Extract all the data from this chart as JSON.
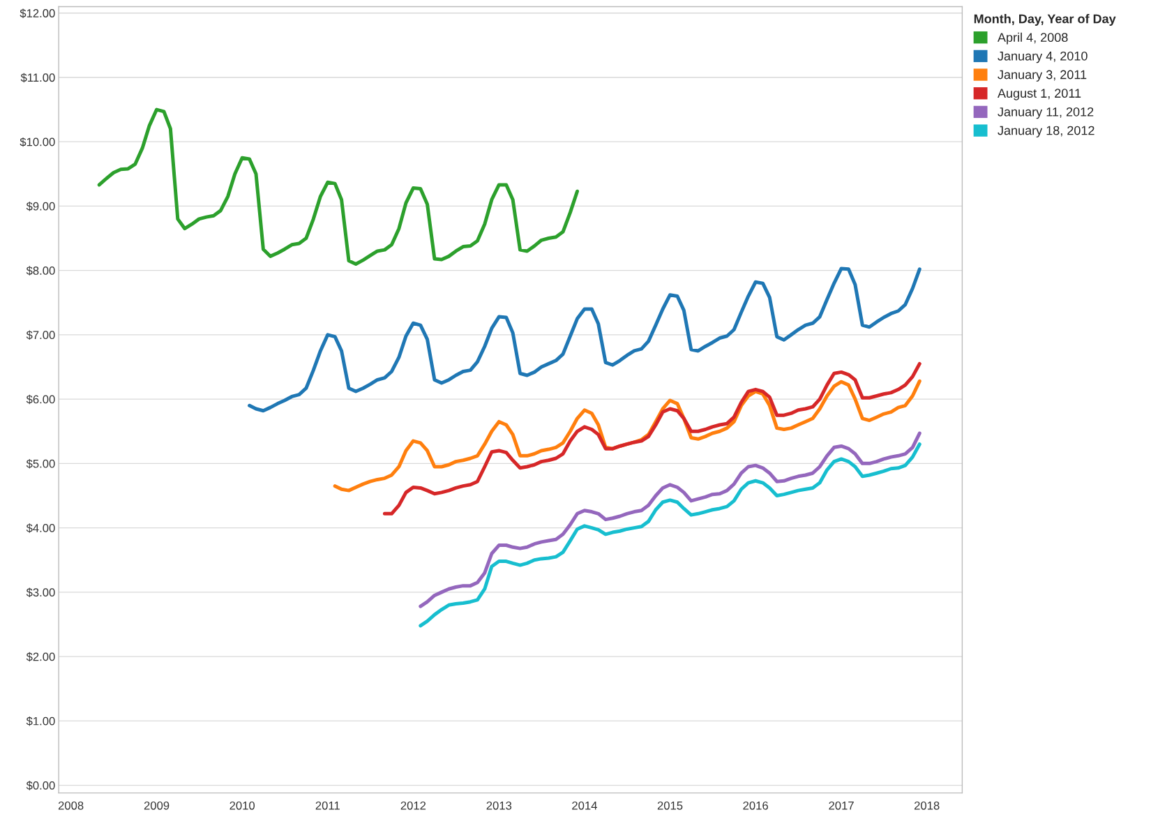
{
  "chart_data": {
    "type": "line",
    "x": [
      "2008-05",
      "2008-06",
      "2008-07",
      "2008-08",
      "2008-09",
      "2008-10",
      "2008-11",
      "2008-12",
      "2009-01",
      "2009-02",
      "2009-03",
      "2009-04",
      "2009-05",
      "2009-06",
      "2009-07",
      "2009-08",
      "2009-09",
      "2009-10",
      "2009-11",
      "2009-12",
      "2010-01",
      "2010-02",
      "2010-03",
      "2010-04",
      "2010-05",
      "2010-06",
      "2010-07",
      "2010-08",
      "2010-09",
      "2010-10",
      "2010-11",
      "2010-12",
      "2011-01",
      "2011-02",
      "2011-03",
      "2011-04",
      "2011-05",
      "2011-06",
      "2011-07",
      "2011-08",
      "2011-09",
      "2011-10",
      "2011-11",
      "2011-12",
      "2012-01",
      "2012-02",
      "2012-03",
      "2012-04",
      "2012-05",
      "2012-06",
      "2012-07",
      "2012-08",
      "2012-09",
      "2012-10",
      "2012-11",
      "2012-12",
      "2013-01",
      "2013-02",
      "2013-03",
      "2013-04",
      "2013-05",
      "2013-06",
      "2013-07",
      "2013-08",
      "2013-09",
      "2013-10",
      "2013-11",
      "2013-12",
      "2014-01",
      "2014-02",
      "2014-03",
      "2014-04",
      "2014-05",
      "2014-06",
      "2014-07",
      "2014-08",
      "2014-09",
      "2014-10",
      "2014-11",
      "2014-12",
      "2015-01",
      "2015-02",
      "2015-03",
      "2015-04",
      "2015-05",
      "2015-06",
      "2015-07",
      "2015-08",
      "2015-09",
      "2015-10",
      "2015-11",
      "2015-12",
      "2016-01",
      "2016-02",
      "2016-03",
      "2016-04",
      "2016-05",
      "2016-06",
      "2016-07",
      "2016-08",
      "2016-09",
      "2016-10",
      "2016-11",
      "2016-12",
      "2017-01",
      "2017-02",
      "2017-03",
      "2017-04",
      "2017-05",
      "2017-06",
      "2017-07",
      "2017-08",
      "2017-09",
      "2017-10",
      "2017-11",
      "2017-12"
    ],
    "series": [
      {
        "name": "April 4, 2008",
        "color": "#2ca02c",
        "values": [
          9.33,
          9.43,
          9.52,
          9.57,
          9.58,
          9.65,
          9.9,
          10.25,
          10.5,
          10.47,
          10.2,
          8.8,
          8.65,
          8.72,
          8.8,
          8.83,
          8.85,
          8.93,
          9.15,
          9.5,
          9.75,
          9.73,
          9.5,
          8.33,
          8.22,
          8.27,
          8.33,
          8.4,
          8.42,
          8.5,
          8.8,
          9.15,
          9.37,
          9.35,
          9.1,
          8.15,
          8.1,
          8.16,
          8.23,
          8.3,
          8.32,
          8.4,
          8.65,
          9.05,
          9.28,
          9.27,
          9.03,
          8.18,
          8.17,
          8.22,
          8.3,
          8.37,
          8.38,
          8.46,
          8.72,
          9.1,
          9.33,
          9.33,
          9.1,
          8.32,
          8.3,
          8.38,
          8.47,
          8.5,
          8.52,
          8.6,
          8.9,
          9.23,
          null,
          null,
          null,
          null,
          null,
          null,
          null,
          null,
          null,
          null,
          null,
          null,
          null,
          null,
          null,
          null,
          null,
          null,
          null,
          null,
          null,
          null,
          null,
          null,
          null,
          null,
          null,
          null,
          null,
          null,
          null,
          null,
          null,
          null,
          null,
          null,
          null,
          null,
          null,
          null,
          null,
          null,
          null,
          null,
          null,
          null,
          null,
          null
        ]
      },
      {
        "name": "January 4, 2010",
        "color": "#1f77b4",
        "values": [
          null,
          null,
          null,
          null,
          null,
          null,
          null,
          null,
          null,
          null,
          null,
          null,
          null,
          null,
          null,
          null,
          null,
          null,
          null,
          null,
          null,
          5.9,
          5.85,
          5.82,
          5.87,
          5.93,
          5.98,
          6.04,
          6.07,
          6.17,
          6.45,
          6.75,
          7.0,
          6.97,
          6.75,
          6.17,
          6.12,
          6.17,
          6.23,
          6.3,
          6.33,
          6.43,
          6.65,
          6.98,
          7.18,
          7.15,
          6.93,
          6.3,
          6.25,
          6.3,
          6.37,
          6.43,
          6.45,
          6.58,
          6.82,
          7.1,
          7.28,
          7.27,
          7.03,
          6.4,
          6.37,
          6.42,
          6.5,
          6.55,
          6.6,
          6.7,
          6.98,
          7.25,
          7.4,
          7.4,
          7.17,
          6.57,
          6.53,
          6.6,
          6.68,
          6.75,
          6.78,
          6.9,
          7.15,
          7.4,
          7.62,
          7.6,
          7.38,
          6.77,
          6.75,
          6.82,
          6.88,
          6.95,
          6.98,
          7.08,
          7.35,
          7.6,
          7.82,
          7.8,
          7.58,
          6.97,
          6.92,
          7.0,
          7.08,
          7.15,
          7.18,
          7.28,
          7.55,
          7.8,
          8.03,
          8.02,
          7.78,
          7.15,
          7.12,
          7.2,
          7.27,
          7.33,
          7.37,
          7.47,
          7.72,
          8.02
        ]
      },
      {
        "name": "January 3, 2011",
        "color": "#ff7f0e",
        "values": [
          null,
          null,
          null,
          null,
          null,
          null,
          null,
          null,
          null,
          null,
          null,
          null,
          null,
          null,
          null,
          null,
          null,
          null,
          null,
          null,
          null,
          null,
          null,
          null,
          null,
          null,
          null,
          null,
          null,
          null,
          null,
          null,
          null,
          4.65,
          4.6,
          4.58,
          4.63,
          4.68,
          4.72,
          4.75,
          4.77,
          4.82,
          4.95,
          5.2,
          5.35,
          5.32,
          5.2,
          4.95,
          4.95,
          4.98,
          5.03,
          5.05,
          5.08,
          5.12,
          5.3,
          5.5,
          5.65,
          5.6,
          5.45,
          5.12,
          5.12,
          5.15,
          5.2,
          5.22,
          5.25,
          5.32,
          5.5,
          5.7,
          5.83,
          5.78,
          5.6,
          5.25,
          5.23,
          5.27,
          5.3,
          5.33,
          5.37,
          5.45,
          5.65,
          5.85,
          5.98,
          5.93,
          5.7,
          5.4,
          5.38,
          5.42,
          5.47,
          5.5,
          5.55,
          5.65,
          5.9,
          6.05,
          6.12,
          6.08,
          5.9,
          5.55,
          5.53,
          5.55,
          5.6,
          5.65,
          5.7,
          5.85,
          6.05,
          6.2,
          6.27,
          6.22,
          6.0,
          5.7,
          5.67,
          5.72,
          5.77,
          5.8,
          5.87,
          5.9,
          6.05,
          6.28
        ]
      },
      {
        "name": "August 1, 2011",
        "color": "#d62728",
        "values": [
          null,
          null,
          null,
          null,
          null,
          null,
          null,
          null,
          null,
          null,
          null,
          null,
          null,
          null,
          null,
          null,
          null,
          null,
          null,
          null,
          null,
          null,
          null,
          null,
          null,
          null,
          null,
          null,
          null,
          null,
          null,
          null,
          null,
          null,
          null,
          null,
          null,
          null,
          null,
          null,
          4.22,
          4.22,
          4.35,
          4.55,
          4.63,
          4.62,
          4.58,
          4.53,
          4.55,
          4.58,
          4.62,
          4.65,
          4.67,
          4.72,
          4.95,
          5.18,
          5.2,
          5.17,
          5.05,
          4.93,
          4.95,
          4.98,
          5.03,
          5.05,
          5.08,
          5.15,
          5.35,
          5.5,
          5.57,
          5.53,
          5.45,
          5.23,
          5.23,
          5.27,
          5.3,
          5.33,
          5.35,
          5.42,
          5.6,
          5.8,
          5.85,
          5.82,
          5.7,
          5.5,
          5.5,
          5.53,
          5.57,
          5.6,
          5.62,
          5.72,
          5.95,
          6.12,
          6.15,
          6.12,
          6.03,
          5.75,
          5.75,
          5.78,
          5.83,
          5.85,
          5.88,
          6.0,
          6.22,
          6.4,
          6.42,
          6.38,
          6.3,
          6.02,
          6.02,
          6.05,
          6.08,
          6.1,
          6.15,
          6.22,
          6.35,
          6.55
        ]
      },
      {
        "name": "January 11, 2012",
        "color": "#9467bd",
        "values": [
          null,
          null,
          null,
          null,
          null,
          null,
          null,
          null,
          null,
          null,
          null,
          null,
          null,
          null,
          null,
          null,
          null,
          null,
          null,
          null,
          null,
          null,
          null,
          null,
          null,
          null,
          null,
          null,
          null,
          null,
          null,
          null,
          null,
          null,
          null,
          null,
          null,
          null,
          null,
          null,
          null,
          null,
          null,
          null,
          null,
          2.78,
          2.85,
          2.95,
          3.0,
          3.05,
          3.08,
          3.1,
          3.1,
          3.15,
          3.3,
          3.6,
          3.73,
          3.73,
          3.7,
          3.68,
          3.7,
          3.75,
          3.78,
          3.8,
          3.82,
          3.9,
          4.05,
          4.22,
          4.27,
          4.25,
          4.22,
          4.13,
          4.15,
          4.18,
          4.22,
          4.25,
          4.27,
          4.35,
          4.5,
          4.62,
          4.67,
          4.63,
          4.55,
          4.42,
          4.45,
          4.48,
          4.52,
          4.53,
          4.58,
          4.68,
          4.85,
          4.95,
          4.97,
          4.93,
          4.85,
          4.72,
          4.73,
          4.77,
          4.8,
          4.82,
          4.85,
          4.95,
          5.12,
          5.25,
          5.27,
          5.23,
          5.15,
          5.0,
          5.0,
          5.03,
          5.07,
          5.1,
          5.12,
          5.15,
          5.25,
          5.47
        ]
      },
      {
        "name": "January 18, 2012",
        "color": "#17becf",
        "values": [
          null,
          null,
          null,
          null,
          null,
          null,
          null,
          null,
          null,
          null,
          null,
          null,
          null,
          null,
          null,
          null,
          null,
          null,
          null,
          null,
          null,
          null,
          null,
          null,
          null,
          null,
          null,
          null,
          null,
          null,
          null,
          null,
          null,
          null,
          null,
          null,
          null,
          null,
          null,
          null,
          null,
          null,
          null,
          null,
          null,
          2.48,
          2.55,
          2.65,
          2.73,
          2.8,
          2.82,
          2.83,
          2.85,
          2.88,
          3.05,
          3.4,
          3.48,
          3.48,
          3.45,
          3.42,
          3.45,
          3.5,
          3.52,
          3.53,
          3.55,
          3.62,
          3.8,
          3.98,
          4.03,
          4.0,
          3.97,
          3.9,
          3.93,
          3.95,
          3.98,
          4.0,
          4.02,
          4.1,
          4.28,
          4.4,
          4.43,
          4.4,
          4.3,
          4.2,
          4.22,
          4.25,
          4.28,
          4.3,
          4.33,
          4.42,
          4.6,
          4.7,
          4.73,
          4.7,
          4.62,
          4.5,
          4.52,
          4.55,
          4.58,
          4.6,
          4.62,
          4.7,
          4.9,
          5.03,
          5.07,
          5.03,
          4.95,
          4.8,
          4.82,
          4.85,
          4.88,
          4.92,
          4.93,
          4.97,
          5.1,
          5.3
        ]
      }
    ],
    "legend_title": "Month, Day, Year of Day",
    "legend": "top right",
    "grid": "y",
    "line_style": "solid",
    "xlim": [
      "2007-11-10",
      "2018-06-01"
    ],
    "xticks": [
      {
        "value": "2008-01-01",
        "label": "2008"
      },
      {
        "value": "2009-01-01",
        "label": "2009"
      },
      {
        "value": "2010-01-01",
        "label": "2010"
      },
      {
        "value": "2011-01-01",
        "label": "2011"
      },
      {
        "value": "2012-01-01",
        "label": "2012"
      },
      {
        "value": "2013-01-01",
        "label": "2013"
      },
      {
        "value": "2014-01-01",
        "label": "2014"
      },
      {
        "value": "2015-01-01",
        "label": "2015"
      },
      {
        "value": "2016-01-01",
        "label": "2016"
      },
      {
        "value": "2017-01-01",
        "label": "2017"
      },
      {
        "value": "2018-01-01",
        "label": "2018"
      }
    ],
    "ylim": [
      -0.12,
      12.1
    ],
    "yticks": [
      {
        "value": 0,
        "label": "$0.00"
      },
      {
        "value": 1,
        "label": "$1.00"
      },
      {
        "value": 2,
        "label": "$2.00"
      },
      {
        "value": 3,
        "label": "$3.00"
      },
      {
        "value": 4,
        "label": "$4.00"
      },
      {
        "value": 5,
        "label": "$5.00"
      },
      {
        "value": 6,
        "label": "$6.00"
      },
      {
        "value": 7,
        "label": "$7.00"
      },
      {
        "value": 8,
        "label": "$8.00"
      },
      {
        "value": 9,
        "label": "$9.00"
      },
      {
        "value": 10,
        "label": "$10.00"
      },
      {
        "value": 11,
        "label": "$11.00"
      },
      {
        "value": 12,
        "label": "$12.00"
      }
    ]
  }
}
